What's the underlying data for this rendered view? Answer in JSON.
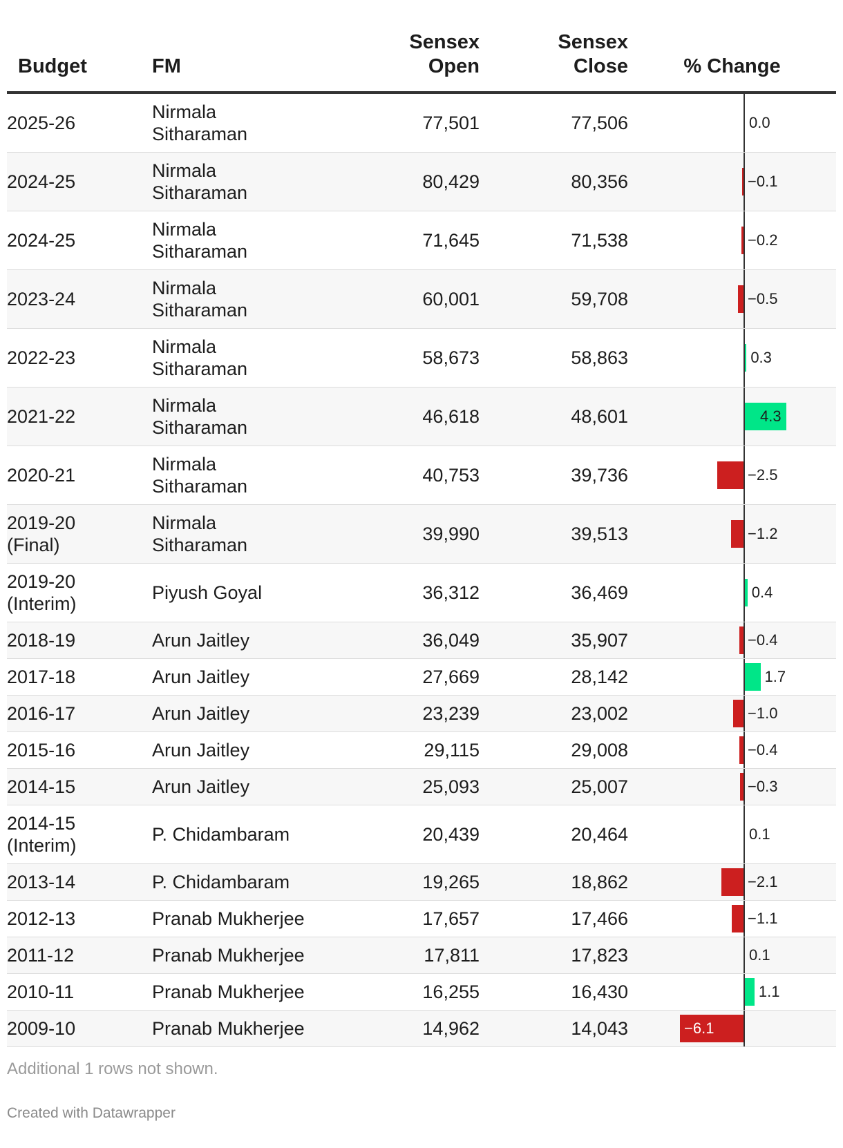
{
  "headers": {
    "budget": "Budget",
    "fm": "FM",
    "open": "Sensex\nOpen",
    "close": "Sensex\nClose",
    "change": "% Change"
  },
  "colors": {
    "positive": "#00e688",
    "negative": "#cc1f1f"
  },
  "chart_data": {
    "type": "table",
    "columns": [
      "Budget",
      "FM",
      "Sensex Open",
      "Sensex Close",
      "% Change"
    ],
    "change_axis": {
      "min": -6.1,
      "max": 4.3
    },
    "rows": [
      {
        "budget": "2025-26",
        "fm": "Nirmala Sitharaman",
        "open": "77,501",
        "close": "77,506",
        "change": 0.0,
        "change_label": "0.0"
      },
      {
        "budget": "2024-25",
        "fm": "Nirmala Sitharaman",
        "open": "80,429",
        "close": "80,356",
        "change": -0.1,
        "change_label": "−0.1"
      },
      {
        "budget": "2024-25",
        "fm": "Nirmala Sitharaman",
        "open": "71,645",
        "close": "71,538",
        "change": -0.2,
        "change_label": "−0.2"
      },
      {
        "budget": "2023-24",
        "fm": "Nirmala Sitharaman",
        "open": "60,001",
        "close": "59,708",
        "change": -0.5,
        "change_label": "−0.5"
      },
      {
        "budget": "2022-23",
        "fm": "Nirmala Sitharaman",
        "open": "58,673",
        "close": "58,863",
        "change": 0.3,
        "change_label": "0.3"
      },
      {
        "budget": "2021-22",
        "fm": "Nirmala Sitharaman",
        "open": "46,618",
        "close": "48,601",
        "change": 4.3,
        "change_label": "4.3"
      },
      {
        "budget": "2020-21",
        "fm": "Nirmala Sitharaman",
        "open": "40,753",
        "close": "39,736",
        "change": -2.5,
        "change_label": "−2.5"
      },
      {
        "budget": "2019-20 (Final)",
        "fm": "Nirmala Sitharaman",
        "open": "39,990",
        "close": "39,513",
        "change": -1.2,
        "change_label": "−1.2"
      },
      {
        "budget": "2019-20 (Interim)",
        "fm": "Piyush Goyal",
        "open": "36,312",
        "close": "36,469",
        "change": 0.4,
        "change_label": "0.4"
      },
      {
        "budget": "2018-19",
        "fm": "Arun Jaitley",
        "open": "36,049",
        "close": "35,907",
        "change": -0.4,
        "change_label": "−0.4"
      },
      {
        "budget": "2017-18",
        "fm": "Arun Jaitley",
        "open": "27,669",
        "close": "28,142",
        "change": 1.7,
        "change_label": "1.7"
      },
      {
        "budget": "2016-17",
        "fm": "Arun Jaitley",
        "open": "23,239",
        "close": "23,002",
        "change": -1.0,
        "change_label": "−1.0"
      },
      {
        "budget": "2015-16",
        "fm": "Arun Jaitley",
        "open": "29,115",
        "close": "29,008",
        "change": -0.4,
        "change_label": "−0.4"
      },
      {
        "budget": "2014-15",
        "fm": "Arun Jaitley",
        "open": "25,093",
        "close": "25,007",
        "change": -0.3,
        "change_label": "−0.3"
      },
      {
        "budget": "2014-15 (Interim)",
        "fm": "P. Chidambaram",
        "open": "20,439",
        "close": "20,464",
        "change": 0.1,
        "change_label": "0.1"
      },
      {
        "budget": "2013-14",
        "fm": "P. Chidambaram",
        "open": "19,265",
        "close": "18,862",
        "change": -2.1,
        "change_label": "−2.1"
      },
      {
        "budget": "2012-13",
        "fm": "Pranab Mukherjee",
        "open": "17,657",
        "close": "17,466",
        "change": -1.1,
        "change_label": "−1.1"
      },
      {
        "budget": "2011-12",
        "fm": "Pranab Mukherjee",
        "open": "17,811",
        "close": "17,823",
        "change": 0.1,
        "change_label": "0.1"
      },
      {
        "budget": "2010-11",
        "fm": "Pranab Mukherjee",
        "open": "16,255",
        "close": "16,430",
        "change": 1.1,
        "change_label": "1.1"
      },
      {
        "budget": "2009-10",
        "fm": "Pranab Mukherjee",
        "open": "14,962",
        "close": "14,043",
        "change": -6.1,
        "change_label": "−6.1"
      }
    ]
  },
  "footer": {
    "note": "Additional 1 rows not shown.",
    "credit": "Created with Datawrapper"
  }
}
